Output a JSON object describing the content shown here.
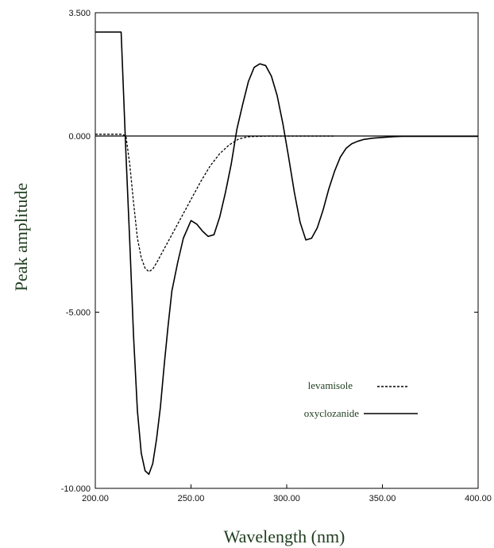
{
  "chart_data": {
    "type": "line",
    "xlabel": "Wavelength (nm)",
    "ylabel": "Peak amplitude",
    "xlim": [
      200,
      400
    ],
    "ylim": [
      -10,
      3.5
    ],
    "x_ticks": [
      200,
      250,
      300,
      350,
      400
    ],
    "x_tick_labels": [
      "200.00",
      "250.00",
      "300.00",
      "350.00",
      "400.00"
    ],
    "y_ticks": [
      3.5,
      0,
      -5,
      -10
    ],
    "y_tick_labels": [
      "3.500",
      "0.000",
      "-5.000",
      "-10.000"
    ],
    "grid": false,
    "zero_line": true,
    "legend_placement": "bottom-right",
    "series": [
      {
        "name": "levamisole",
        "style": "dashed",
        "x": [
          200,
          210,
          214,
          216,
          218,
          220,
          222,
          224,
          226,
          228,
          230,
          232,
          235,
          240,
          245,
          250,
          255,
          260,
          265,
          270,
          275,
          280,
          290,
          300,
          310,
          320,
          325
        ],
        "y": [
          0.05,
          0.05,
          0.05,
          0.0,
          -0.8,
          -1.9,
          -2.9,
          -3.45,
          -3.75,
          -3.85,
          -3.78,
          -3.6,
          -3.3,
          -2.8,
          -2.3,
          -1.8,
          -1.3,
          -0.85,
          -0.5,
          -0.25,
          -0.08,
          -0.02,
          0.0,
          0.0,
          0.0,
          0.0,
          0.0
        ]
      },
      {
        "name": "oxyclozanide",
        "style": "solid",
        "x": [
          200,
          213,
          213.5,
          216,
          218,
          220,
          222,
          224,
          226,
          228,
          230,
          232,
          234,
          236,
          238,
          240,
          243,
          246,
          250,
          253,
          256,
          259,
          262,
          265,
          268,
          271,
          274,
          277,
          280,
          283,
          286,
          289,
          292,
          295,
          298,
          301,
          304,
          307,
          310,
          313,
          316,
          319,
          322,
          325,
          328,
          331,
          334,
          337,
          340,
          345,
          350,
          355,
          360,
          400
        ],
        "y": [
          2.95,
          2.95,
          2.95,
          -0.5,
          -3.0,
          -5.7,
          -7.8,
          -9.0,
          -9.5,
          -9.6,
          -9.3,
          -8.6,
          -7.7,
          -6.5,
          -5.4,
          -4.4,
          -3.6,
          -2.9,
          -2.4,
          -2.5,
          -2.7,
          -2.85,
          -2.8,
          -2.3,
          -1.6,
          -0.8,
          0.2,
          0.9,
          1.55,
          1.95,
          2.05,
          2.0,
          1.7,
          1.15,
          0.35,
          -0.6,
          -1.6,
          -2.45,
          -2.95,
          -2.9,
          -2.6,
          -2.1,
          -1.5,
          -1.0,
          -0.6,
          -0.35,
          -0.22,
          -0.15,
          -0.1,
          -0.06,
          -0.04,
          -0.02,
          -0.01,
          -0.01
        ]
      }
    ]
  }
}
